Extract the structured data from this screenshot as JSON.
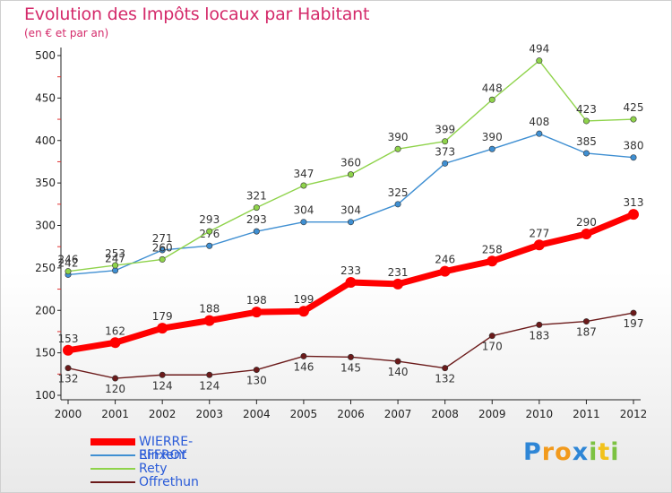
{
  "chart_data": {
    "type": "line",
    "title": "Evolution des Impôts locaux par Habitant",
    "subtitle": "(en € et par an)",
    "x": [
      "2000",
      "2001",
      "2002",
      "2003",
      "2004",
      "2005",
      "2006",
      "2007",
      "2008",
      "2009",
      "2010",
      "2011",
      "2012"
    ],
    "ylim": [
      100,
      500
    ],
    "yticks": [
      "100",
      "150",
      "200",
      "250",
      "300",
      "350",
      "400",
      "450",
      "500"
    ],
    "grid": false,
    "legend_position": "bottom-left",
    "series": [
      {
        "name": "WIERRE-EFFROY",
        "color": "#ff0000",
        "emphasis": true,
        "values": [
          153,
          162,
          179,
          188,
          198,
          199,
          233,
          231,
          246,
          258,
          277,
          290,
          313
        ]
      },
      {
        "name": "Rinxent",
        "color": "#3f8fd2",
        "values": [
          242,
          247,
          271,
          276,
          293,
          304,
          304,
          325,
          373,
          390,
          408,
          385,
          380
        ]
      },
      {
        "name": "Rety",
        "color": "#8fd34b",
        "values": [
          246,
          253,
          260,
          293,
          321,
          347,
          360,
          390,
          399,
          448,
          494,
          423,
          425
        ]
      },
      {
        "name": "Offrethun",
        "color": "#6b1a1a",
        "values": [
          132,
          120,
          124,
          124,
          130,
          146,
          145,
          140,
          132,
          170,
          183,
          187,
          197
        ]
      }
    ]
  },
  "brand": {
    "letters": [
      "P",
      "r",
      "o",
      "x",
      "i",
      "t",
      "i"
    ],
    "colors": [
      "#2e86d6",
      "#f29a1c",
      "#f29a1c",
      "#2e86d6",
      "#7cc242",
      "#f2c21c",
      "#7cc242"
    ]
  }
}
